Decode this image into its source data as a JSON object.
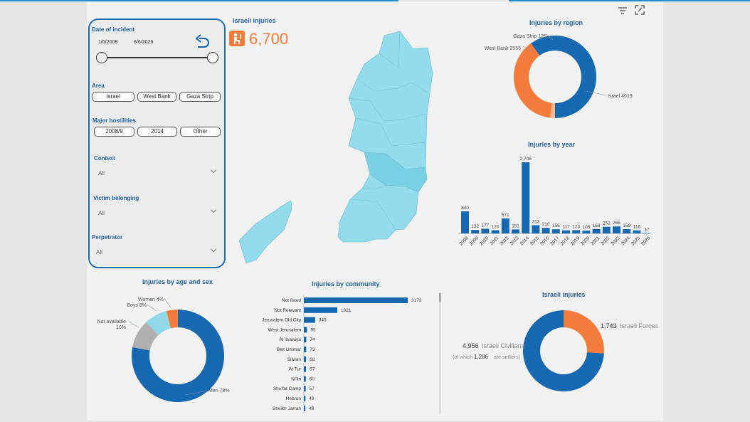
{
  "filters": {
    "date": {
      "label": "Date of incident",
      "start": "1/6/2008",
      "end": "6/6/2026"
    },
    "area": {
      "label": "Area",
      "options": [
        "Israel",
        "West Bank",
        "Gaza Strip"
      ]
    },
    "hostilities": {
      "label": "Major hostilities",
      "options": [
        "2008/9",
        "2014",
        "Other"
      ]
    },
    "context": {
      "label": "Context",
      "value": "All"
    },
    "victim": {
      "label": "Victim belonging",
      "value": "All"
    },
    "perpetrator": {
      "label": "Perpetrator",
      "value": "All"
    }
  },
  "kpi": {
    "title": "Israeli injuries",
    "value": "6,700",
    "icon": "injured-person-icon",
    "color": "#f47b3b"
  },
  "colors": {
    "blue": "#1668b0",
    "orange": "#f47b3b",
    "grey": "#b0b0b0",
    "lightblue": "#8fd8ea",
    "peach": "#f6b493",
    "map": "#92dcee"
  },
  "chart_data": [
    {
      "type": "pie",
      "title": "Injuries by region",
      "slices": [
        {
          "label": "Israel 4019",
          "value": 4019,
          "color": "#1668b0"
        },
        {
          "label": "West Bank 2555",
          "value": 2555,
          "color": "#f47b3b"
        },
        {
          "label": "Gaza Strip 126",
          "value": 126,
          "color": "#f6b493"
        }
      ]
    },
    {
      "type": "bar",
      "title": "Injuries by year",
      "categories": [
        "2008",
        "2009",
        "2010",
        "2011",
        "2012",
        "2013",
        "2014",
        "2015",
        "2016",
        "2017",
        "2018",
        "2019",
        "2020",
        "2021",
        "2022",
        "2023",
        "2024",
        "2025",
        "2026"
      ],
      "values": [
        840,
        132,
        177,
        120,
        571,
        151,
        2708,
        313,
        210,
        156,
        117,
        123,
        105,
        168,
        252,
        265,
        159,
        116,
        17
      ],
      "value_labels": [
        "840",
        "132",
        "177",
        "120",
        "571",
        "151",
        "2,708",
        "313",
        "210",
        "156",
        "117",
        "123",
        "105",
        "168",
        "252",
        "265",
        "159",
        "116",
        "17"
      ]
    },
    {
      "type": "pie",
      "title": "Injuries by age and sex",
      "slices": [
        {
          "label": "Men 78%",
          "value": 78,
          "color": "#1668b0"
        },
        {
          "label": "Not available 10%",
          "value": 10,
          "color": "#b0b0b0"
        },
        {
          "label": "Boys 8%",
          "value": 8,
          "color": "#8fd8ea"
        },
        {
          "label": "Women 4%",
          "value": 4,
          "color": "#f47b3b"
        }
      ]
    },
    {
      "type": "bar",
      "title": "Injuries by community",
      "categories": [
        "Not listed",
        "Not Relevant",
        "Jerusalem Old City",
        "West Jerusalem",
        "Al 'Isawiya",
        "Beit Ummar",
        "Silwan",
        "At Tur",
        "Ni'lin",
        "Shu'fat Camp",
        "Hebron",
        "Sheikh Jarrah"
      ],
      "values": [
        3173,
        1021,
        345,
        95,
        74,
        73,
        68,
        67,
        60,
        57,
        49,
        48
      ]
    },
    {
      "type": "pie",
      "title": "Israeli injuries",
      "slices": [
        {
          "label": "Israeli Civilians",
          "value": 4956,
          "color": "#1668b0"
        },
        {
          "label": "Israeli Forces",
          "value": 1743,
          "color": "#f47b3b"
        }
      ]
    }
  ],
  "israeli_labels": {
    "forces_value": "1,743",
    "forces_text": "Israeli Forces",
    "civ_value": "4,956",
    "civ_text": "Israeli Civilians",
    "settler_prefix": "(of which",
    "settler_value": "1,286",
    "settler_suffix": "are settlers)"
  },
  "toolbar": {
    "filter_icon": "filter-icon",
    "expand_icon": "focus-mode-icon"
  }
}
